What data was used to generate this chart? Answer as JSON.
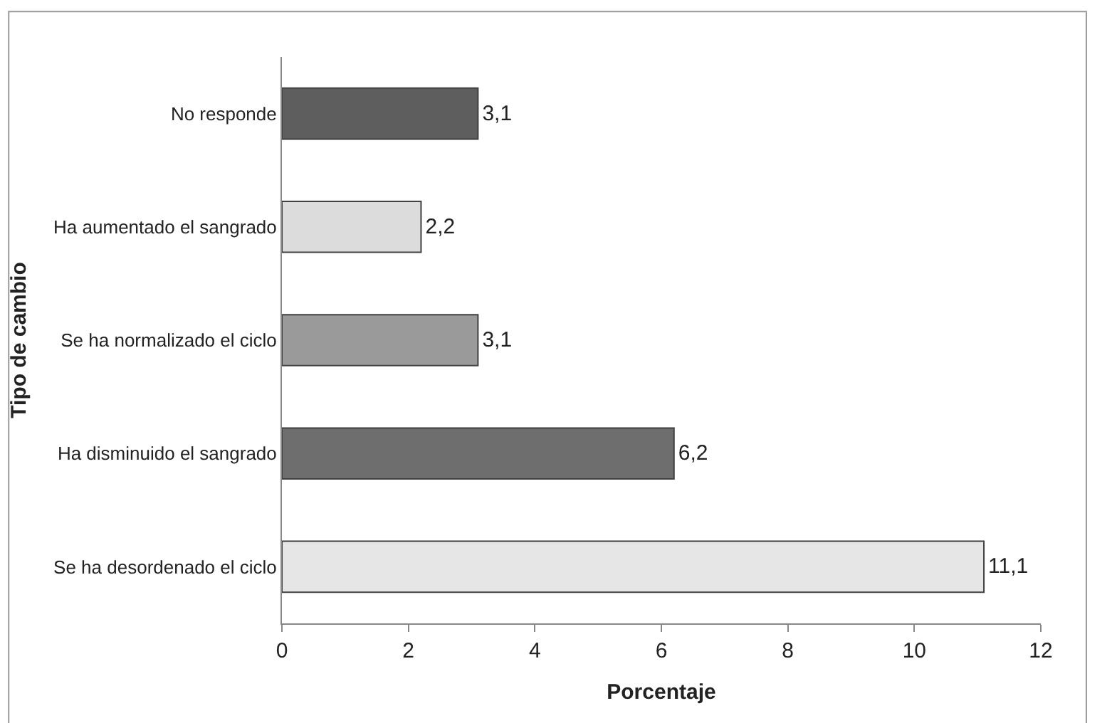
{
  "chart_data": {
    "type": "bar",
    "orientation": "horizontal",
    "xlabel": "Porcentaje",
    "ylabel": "Tipo de cambio",
    "categories": [
      "No responde",
      "Ha aumentado el sangrado",
      "Se ha normalizado el ciclo",
      "Ha disminuido el sangrado",
      "Se ha desordenado el ciclo"
    ],
    "values": [
      3.1,
      2.2,
      3.1,
      6.2,
      11.1
    ],
    "value_labels": [
      "3,1",
      "2,2",
      "3,1",
      "6,2",
      "11,1"
    ],
    "colors": [
      "#5e5e5e",
      "#dcdcdc",
      "#9a9a9a",
      "#6e6e6e",
      "#e6e6e6"
    ],
    "xlim": [
      0,
      12
    ],
    "xticks": [
      0,
      2,
      4,
      6,
      8,
      10,
      12
    ]
  }
}
